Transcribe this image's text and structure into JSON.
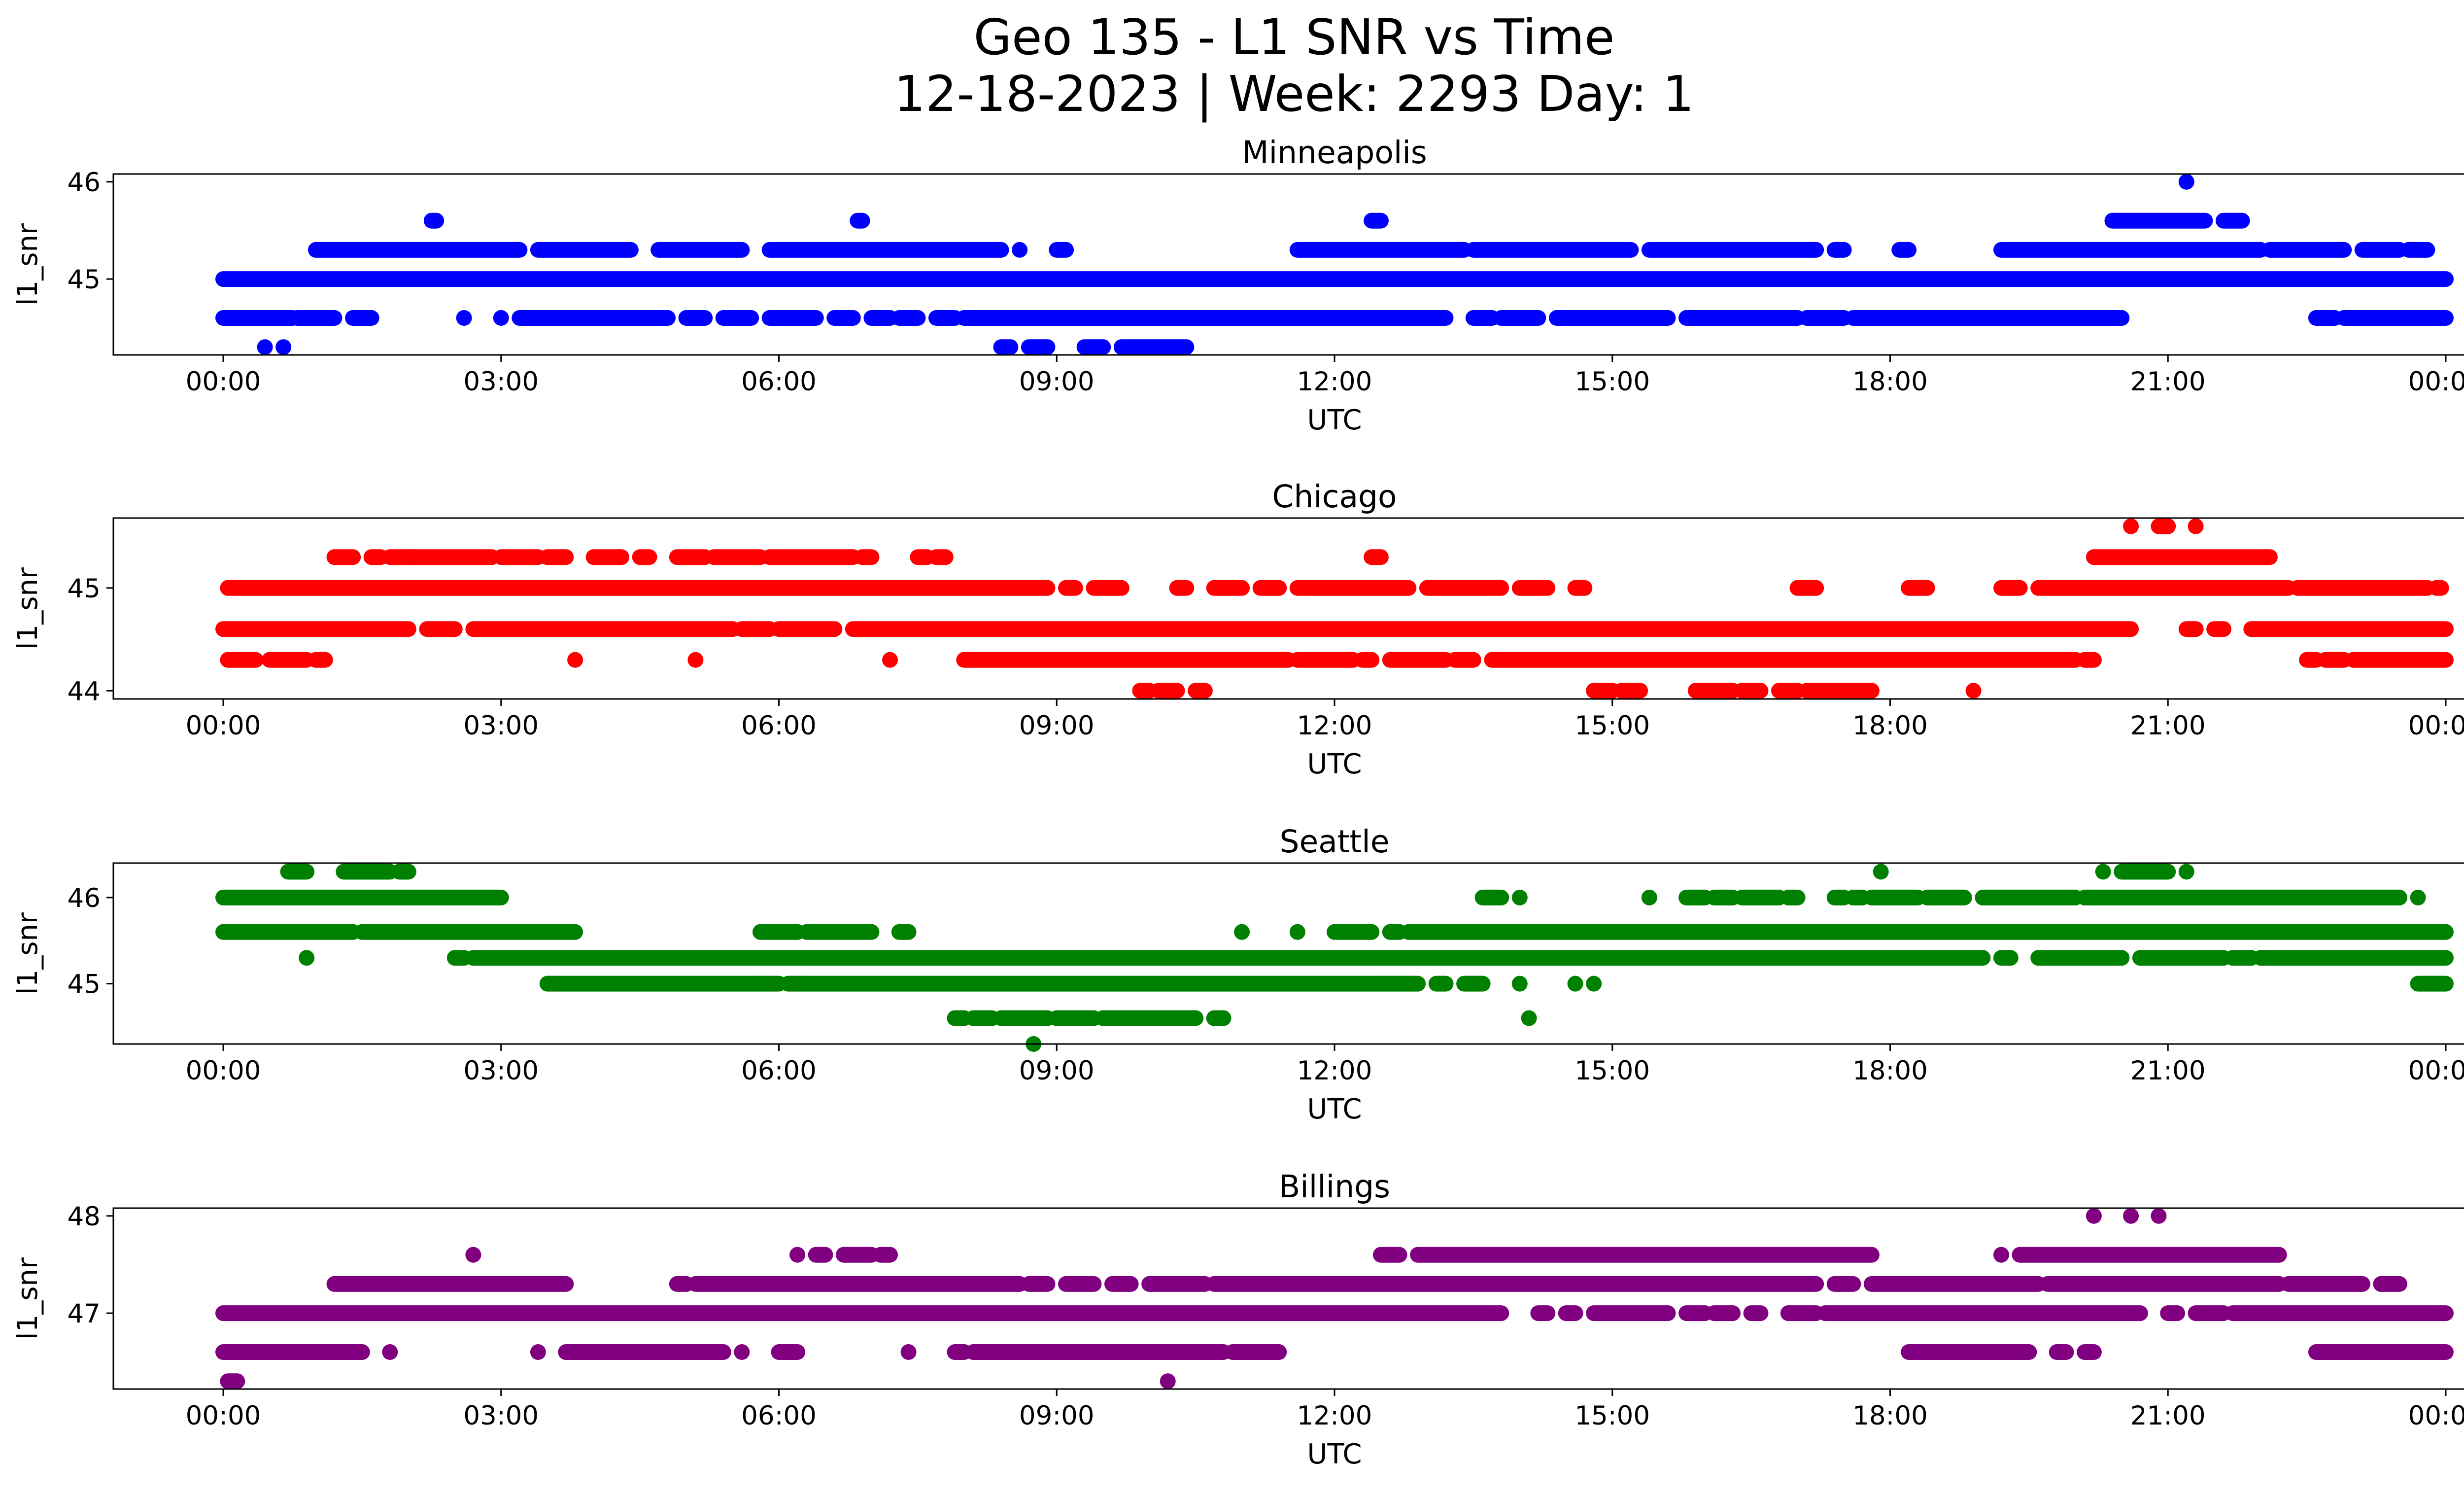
{
  "figure": {
    "title_line1": "Geo 135 - L1 SNR vs Time",
    "title_line2": "12-18-2023 | Week: 2293 Day: 1"
  },
  "chart_data": [
    {
      "type": "scatter",
      "title": "Minneapolis",
      "xlabel": "UTC",
      "ylabel": "l1_snr",
      "color": "#0000ff",
      "xlim": [
        "00:00",
        "24:00"
      ],
      "xticks": [
        "00:00",
        "03:00",
        "06:00",
        "09:00",
        "12:00",
        "15:00",
        "18:00",
        "21:00",
        "00:00"
      ],
      "ylim": [
        44.22,
        46.08
      ],
      "yticks": [
        45,
        46
      ],
      "series": [
        {
          "y": 45.0,
          "segments": [
            [
              0.0,
              24.0
            ]
          ]
        },
        {
          "y": 44.6,
          "segments": [
            [
              0.0,
              0.75
            ],
            [
              0.8,
              1.2
            ],
            [
              1.4,
              1.6
            ],
            [
              2.6,
              2.6
            ],
            [
              3.0,
              3.0
            ],
            [
              3.2,
              4.8
            ],
            [
              5.0,
              5.2
            ],
            [
              5.4,
              5.7
            ],
            [
              5.9,
              6.4
            ],
            [
              6.6,
              6.8
            ],
            [
              7.0,
              7.2
            ],
            [
              7.3,
              7.5
            ],
            [
              7.7,
              7.9
            ],
            [
              8.0,
              13.2
            ],
            [
              13.5,
              13.7
            ],
            [
              13.8,
              14.2
            ],
            [
              14.4,
              15.6
            ],
            [
              15.8,
              17.0
            ],
            [
              17.1,
              17.5
            ],
            [
              17.6,
              20.5
            ],
            [
              22.6,
              22.8
            ],
            [
              22.9,
              24.0
            ]
          ]
        },
        {
          "y": 45.3,
          "segments": [
            [
              1.0,
              3.2
            ],
            [
              3.4,
              4.4
            ],
            [
              4.7,
              5.6
            ],
            [
              5.9,
              8.4
            ],
            [
              8.6,
              8.6
            ],
            [
              9.0,
              9.1
            ],
            [
              11.6,
              13.4
            ],
            [
              13.5,
              15.2
            ],
            [
              15.4,
              17.2
            ],
            [
              17.4,
              17.5
            ],
            [
              18.1,
              18.2
            ],
            [
              19.2,
              22.0
            ],
            [
              22.1,
              22.9
            ],
            [
              23.1,
              23.5
            ],
            [
              23.6,
              23.8
            ]
          ]
        },
        {
          "y": 45.6,
          "segments": [
            [
              2.25,
              2.3
            ],
            [
              6.85,
              6.9
            ],
            [
              12.4,
              12.5
            ],
            [
              20.4,
              21.4
            ],
            [
              21.6,
              21.8
            ]
          ]
        },
        {
          "y": 46.0,
          "segments": [
            [
              21.2,
              21.2
            ]
          ]
        },
        {
          "y": 44.3,
          "segments": [
            [
              0.45,
              0.45
            ],
            [
              0.65,
              0.65
            ],
            [
              8.4,
              8.5
            ],
            [
              8.7,
              8.9
            ],
            [
              9.3,
              9.5
            ],
            [
              9.7,
              10.4
            ]
          ]
        }
      ]
    },
    {
      "type": "scatter",
      "title": "Chicago",
      "xlabel": "UTC",
      "ylabel": "l1_snr",
      "color": "#ff0000",
      "xlim": [
        "00:00",
        "24:00"
      ],
      "xticks": [
        "00:00",
        "03:00",
        "06:00",
        "09:00",
        "12:00",
        "15:00",
        "18:00",
        "21:00",
        "00:00"
      ],
      "ylim": [
        43.92,
        45.68
      ],
      "yticks": [
        44,
        45
      ],
      "series": [
        {
          "y": 44.6,
          "segments": [
            [
              0.0,
              2.0
            ],
            [
              2.2,
              2.5
            ],
            [
              2.7,
              5.5
            ],
            [
              5.6,
              5.9
            ],
            [
              6.0,
              6.6
            ],
            [
              6.8,
              20.6
            ],
            [
              21.2,
              21.3
            ],
            [
              21.5,
              21.6
            ],
            [
              21.9,
              24.0
            ]
          ]
        },
        {
          "y": 45.0,
          "segments": [
            [
              0.05,
              8.9
            ],
            [
              9.1,
              9.2
            ],
            [
              9.4,
              9.7
            ],
            [
              10.3,
              10.4
            ],
            [
              10.7,
              11.0
            ],
            [
              11.2,
              11.4
            ],
            [
              11.6,
              12.8
            ],
            [
              13.0,
              13.8
            ],
            [
              14.0,
              14.3
            ],
            [
              14.6,
              14.7
            ],
            [
              17.0,
              17.2
            ],
            [
              18.2,
              18.4
            ],
            [
              19.2,
              19.4
            ],
            [
              19.6,
              22.3
            ],
            [
              22.4,
              23.8
            ],
            [
              23.9,
              23.95
            ]
          ]
        },
        {
          "y": 44.3,
          "segments": [
            [
              0.05,
              0.35
            ],
            [
              0.5,
              0.9
            ],
            [
              1.0,
              1.1
            ],
            [
              3.8,
              3.8
            ],
            [
              5.1,
              5.1
            ],
            [
              7.2,
              7.2
            ],
            [
              8.0,
              11.5
            ],
            [
              11.6,
              12.2
            ],
            [
              12.3,
              12.4
            ],
            [
              12.6,
              13.2
            ],
            [
              13.3,
              13.5
            ],
            [
              13.7,
              20.0
            ],
            [
              20.1,
              20.2
            ],
            [
              22.5,
              22.6
            ],
            [
              22.7,
              22.9
            ],
            [
              23.0,
              24.0
            ]
          ]
        },
        {
          "y": 45.3,
          "segments": [
            [
              1.2,
              1.4
            ],
            [
              1.6,
              1.7
            ],
            [
              1.8,
              2.0
            ],
            [
              2.0,
              2.9
            ],
            [
              3.0,
              3.4
            ],
            [
              3.5,
              3.7
            ],
            [
              4.0,
              4.3
            ],
            [
              4.5,
              4.6
            ],
            [
              4.9,
              5.2
            ],
            [
              5.3,
              5.8
            ],
            [
              5.9,
              6.8
            ],
            [
              6.9,
              7.0
            ],
            [
              7.5,
              7.6
            ],
            [
              7.7,
              7.8
            ],
            [
              12.4,
              12.5
            ],
            [
              20.2,
              22.1
            ]
          ]
        },
        {
          "y": 45.6,
          "segments": [
            [
              20.6,
              20.6
            ],
            [
              20.9,
              21.0
            ],
            [
              21.3,
              21.3
            ]
          ]
        },
        {
          "y": 44.0,
          "segments": [
            [
              9.9,
              10.0
            ],
            [
              10.1,
              10.3
            ],
            [
              10.5,
              10.6
            ],
            [
              14.8,
              15.0
            ],
            [
              15.1,
              15.3
            ],
            [
              15.9,
              16.3
            ],
            [
              16.4,
              16.6
            ],
            [
              16.8,
              17.0
            ],
            [
              17.1,
              17.8
            ],
            [
              18.9,
              18.9
            ]
          ]
        }
      ]
    },
    {
      "type": "scatter",
      "title": "Seattle",
      "xlabel": "UTC",
      "ylabel": "l1_snr",
      "color": "#008000",
      "xlim": [
        "00:00",
        "24:00"
      ],
      "xticks": [
        "00:00",
        "03:00",
        "06:00",
        "09:00",
        "12:00",
        "15:00",
        "18:00",
        "21:00",
        "00:00"
      ],
      "ylim": [
        44.3,
        46.4
      ],
      "yticks": [
        45,
        46
      ],
      "series": [
        {
          "y": 46.0,
          "segments": [
            [
              0.0,
              3.0
            ],
            [
              13.6,
              13.8
            ],
            [
              14.0,
              14.0
            ],
            [
              15.4,
              15.4
            ],
            [
              15.8,
              16.0
            ],
            [
              16.1,
              16.3
            ],
            [
              16.4,
              16.8
            ],
            [
              16.9,
              17.0
            ],
            [
              17.4,
              17.5
            ],
            [
              17.6,
              17.7
            ],
            [
              17.8,
              18.3
            ],
            [
              18.4,
              18.8
            ],
            [
              19.0,
              20.0
            ],
            [
              20.1,
              23.5
            ],
            [
              23.7,
              23.7
            ]
          ]
        },
        {
          "y": 45.6,
          "segments": [
            [
              0.0,
              1.4
            ],
            [
              1.5,
              3.8
            ],
            [
              5.8,
              6.2
            ],
            [
              6.3,
              7.0
            ],
            [
              7.3,
              7.4
            ],
            [
              11.0,
              11.0
            ],
            [
              11.6,
              11.6
            ],
            [
              12.0,
              12.4
            ],
            [
              12.6,
              12.7
            ],
            [
              12.8,
              24.0
            ]
          ]
        },
        {
          "y": 45.3,
          "segments": [
            [
              0.9,
              0.9
            ],
            [
              2.5,
              2.6
            ],
            [
              2.7,
              19.0
            ],
            [
              19.2,
              19.3
            ],
            [
              19.6,
              20.5
            ],
            [
              20.7,
              21.6
            ],
            [
              21.7,
              21.9
            ],
            [
              22.0,
              24.0
            ]
          ]
        },
        {
          "y": 45.0,
          "segments": [
            [
              3.5,
              6.0
            ],
            [
              6.1,
              12.9
            ],
            [
              13.1,
              13.2
            ],
            [
              13.4,
              13.6
            ],
            [
              14.0,
              14.0
            ],
            [
              14.6,
              14.6
            ],
            [
              14.8,
              14.8
            ],
            [
              23.7,
              24.0
            ]
          ]
        },
        {
          "y": 46.3,
          "segments": [
            [
              0.7,
              0.9
            ],
            [
              1.3,
              1.8
            ],
            [
              1.9,
              2.0
            ],
            [
              17.9,
              17.9
            ],
            [
              20.3,
              20.3
            ],
            [
              20.5,
              21.0
            ],
            [
              21.2,
              21.2
            ]
          ]
        },
        {
          "y": 44.6,
          "segments": [
            [
              7.9,
              8.0
            ],
            [
              8.1,
              8.3
            ],
            [
              8.4,
              8.9
            ],
            [
              9.0,
              9.4
            ],
            [
              9.5,
              10.5
            ],
            [
              10.7,
              10.8
            ],
            [
              14.1,
              14.1
            ]
          ]
        },
        {
          "y": 44.3,
          "segments": [
            [
              8.75,
              8.75
            ]
          ]
        }
      ]
    },
    {
      "type": "scatter",
      "title": "Billings",
      "xlabel": "UTC",
      "ylabel": "l1_snr",
      "color": "#800080",
      "xlim": [
        "00:00",
        "24:00"
      ],
      "xticks": [
        "00:00",
        "03:00",
        "06:00",
        "09:00",
        "12:00",
        "15:00",
        "18:00",
        "21:00",
        "00:00"
      ],
      "ylim": [
        46.22,
        48.08
      ],
      "yticks": [
        47,
        48
      ],
      "series": [
        {
          "y": 47.0,
          "segments": [
            [
              0.0,
              13.8
            ],
            [
              14.2,
              14.3
            ],
            [
              14.5,
              14.6
            ],
            [
              14.8,
              15.6
            ],
            [
              15.8,
              16.0
            ],
            [
              16.1,
              16.3
            ],
            [
              16.5,
              16.6
            ],
            [
              16.9,
              17.2
            ],
            [
              17.3,
              20.7
            ],
            [
              21.0,
              21.1
            ],
            [
              21.3,
              21.6
            ],
            [
              21.7,
              24.0
            ]
          ]
        },
        {
          "y": 46.6,
          "segments": [
            [
              0.0,
              1.5
            ],
            [
              1.8,
              1.8
            ],
            [
              3.4,
              3.4
            ],
            [
              3.7,
              5.4
            ],
            [
              5.6,
              5.6
            ],
            [
              6.0,
              6.2
            ],
            [
              7.4,
              7.4
            ],
            [
              7.9,
              8.0
            ],
            [
              8.1,
              10.8
            ],
            [
              10.9,
              11.4
            ],
            [
              18.2,
              19.5
            ],
            [
              19.8,
              19.9
            ],
            [
              20.1,
              20.2
            ],
            [
              22.6,
              24.0
            ]
          ]
        },
        {
          "y": 47.3,
          "segments": [
            [
              1.2,
              3.7
            ],
            [
              4.9,
              5.0
            ],
            [
              5.1,
              8.6
            ],
            [
              8.7,
              8.9
            ],
            [
              9.1,
              9.4
            ],
            [
              9.6,
              9.8
            ],
            [
              10.0,
              10.6
            ],
            [
              10.7,
              17.2
            ],
            [
              17.4,
              17.6
            ],
            [
              17.8,
              19.6
            ],
            [
              19.7,
              22.2
            ],
            [
              22.3,
              23.1
            ],
            [
              23.3,
              23.5
            ]
          ]
        },
        {
          "y": 47.6,
          "segments": [
            [
              2.7,
              2.7
            ],
            [
              6.2,
              6.2
            ],
            [
              6.4,
              6.5
            ],
            [
              6.7,
              7.0
            ],
            [
              7.1,
              7.2
            ],
            [
              12.5,
              12.7
            ],
            [
              12.9,
              17.8
            ],
            [
              19.2,
              19.2
            ],
            [
              19.4,
              22.2
            ]
          ]
        },
        {
          "y": 48.0,
          "segments": [
            [
              20.2,
              20.2
            ],
            [
              20.6,
              20.6
            ],
            [
              20.9,
              20.9
            ]
          ]
        },
        {
          "y": 46.3,
          "segments": [
            [
              0.05,
              0.15
            ],
            [
              10.2,
              10.2
            ]
          ]
        }
      ]
    }
  ]
}
